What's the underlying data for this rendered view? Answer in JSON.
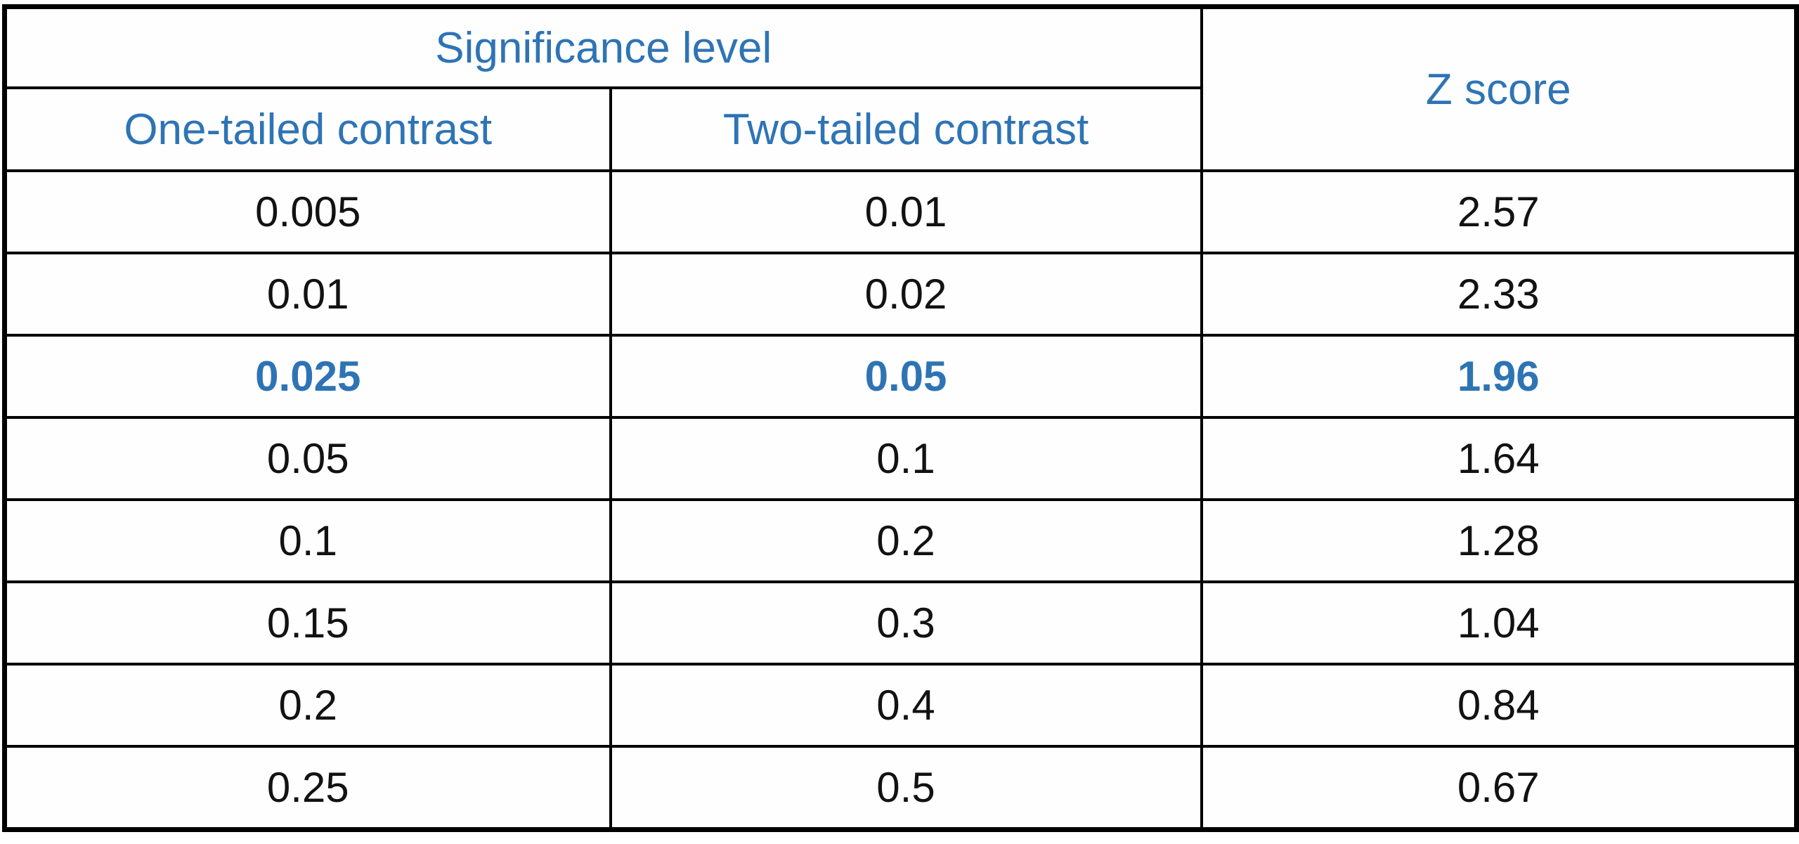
{
  "table": {
    "header": {
      "significance_level": "Significance level",
      "one_tailed": "One-tailed contrast",
      "two_tailed": "Two-tailed contrast",
      "z_score": "Z score"
    },
    "rows": [
      {
        "one_tailed": "0.005",
        "two_tailed": "0.01",
        "z_score": "2.57",
        "highlight": false
      },
      {
        "one_tailed": "0.01",
        "two_tailed": "0.02",
        "z_score": "2.33",
        "highlight": false
      },
      {
        "one_tailed": "0.025",
        "two_tailed": "0.05",
        "z_score": "1.96",
        "highlight": true
      },
      {
        "one_tailed": "0.05",
        "two_tailed": "0.1",
        "z_score": "1.64",
        "highlight": false
      },
      {
        "one_tailed": "0.1",
        "two_tailed": "0.2",
        "z_score": "1.28",
        "highlight": false
      },
      {
        "one_tailed": "0.15",
        "two_tailed": "0.3",
        "z_score": "1.04",
        "highlight": false
      },
      {
        "one_tailed": "0.2",
        "two_tailed": "0.4",
        "z_score": "0.84",
        "highlight": false
      },
      {
        "one_tailed": "0.25",
        "two_tailed": "0.5",
        "z_score": "0.67",
        "highlight": false
      }
    ],
    "colors": {
      "header_text": "#2E74B5",
      "highlight_text": "#2E74B5",
      "body_text": "#121212",
      "border": "#000000",
      "background": "#FFFFFF"
    }
  },
  "chart_data": {
    "type": "table",
    "title": "",
    "column_group": {
      "label": "Significance level",
      "spans_columns": [
        "One-tailed contrast",
        "Two-tailed contrast"
      ]
    },
    "columns": [
      "One-tailed contrast",
      "Two-tailed contrast",
      "Z score"
    ],
    "rows": [
      [
        0.005,
        0.01,
        2.57
      ],
      [
        0.01,
        0.02,
        2.33
      ],
      [
        0.025,
        0.05,
        1.96
      ],
      [
        0.05,
        0.1,
        1.64
      ],
      [
        0.1,
        0.2,
        1.28
      ],
      [
        0.15,
        0.3,
        1.04
      ],
      [
        0.2,
        0.4,
        0.84
      ],
      [
        0.25,
        0.5,
        0.67
      ]
    ],
    "highlighted_row_index": 2,
    "notes": "Row [0.025, 0.05, 1.96] is emphasized in bold blue; headers in blue; grid on; black cell borders"
  }
}
